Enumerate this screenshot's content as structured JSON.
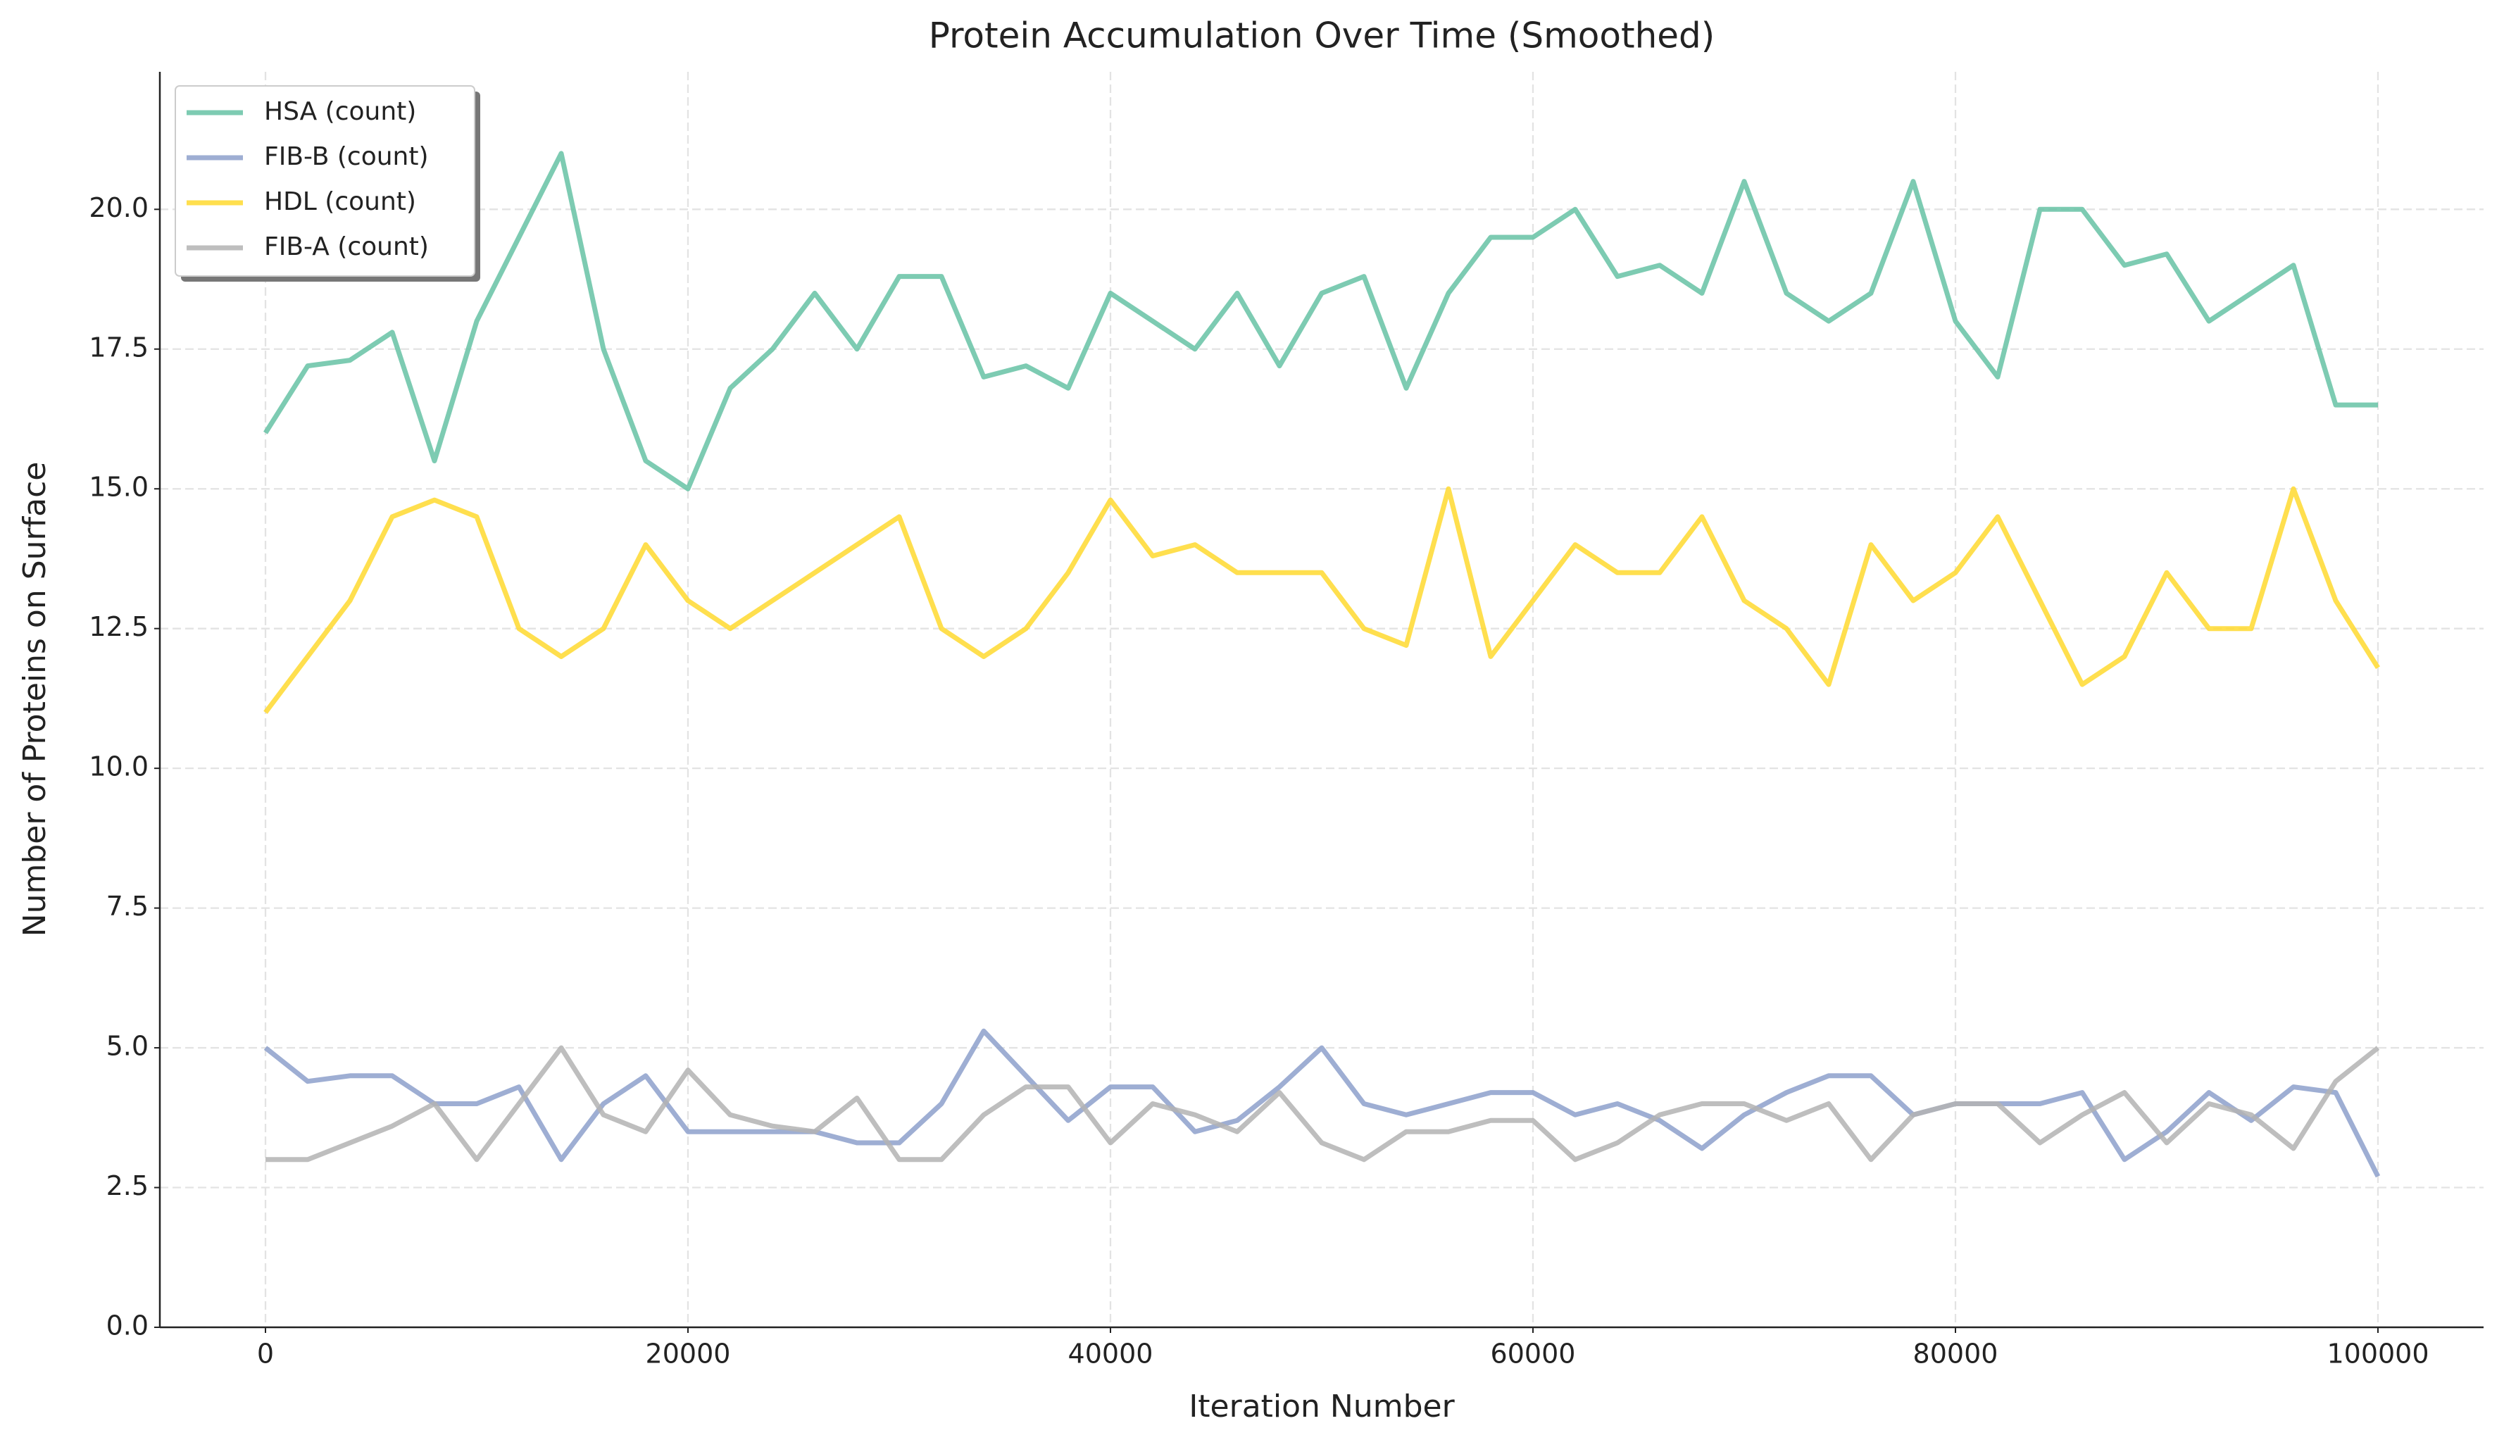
{
  "chart_data": {
    "type": "line",
    "title": "Protein Accumulation Over Time (Smoothed)",
    "x_label": "Iteration Number",
    "y_label": "Number of Proteins on Surface",
    "x": [
      0,
      2000,
      4000,
      6000,
      8000,
      10000,
      12000,
      14000,
      16000,
      18000,
      20000,
      22000,
      24000,
      26000,
      28000,
      30000,
      32000,
      34000,
      36000,
      38000,
      40000,
      42000,
      44000,
      46000,
      48000,
      50000,
      52000,
      54000,
      56000,
      58000,
      60000,
      62000,
      64000,
      66000,
      68000,
      70000,
      72000,
      74000,
      76000,
      78000,
      80000,
      82000,
      84000,
      86000,
      88000,
      90000,
      92000,
      94000,
      96000,
      98000,
      100000
    ],
    "series": [
      {
        "name": "HSA (count)",
        "color": "#66c2a5",
        "values": [
          16,
          17.2,
          17.3,
          17.8,
          15.5,
          18,
          19.5,
          21,
          17.5,
          15.5,
          15,
          16.8,
          17.5,
          18.5,
          17.5,
          18.8,
          18.8,
          17,
          17.2,
          16.8,
          18.5,
          18,
          17.5,
          18.5,
          17.2,
          18.5,
          18.8,
          16.8,
          18.5,
          19.5,
          19.5,
          20,
          18.8,
          19,
          18.5,
          20.5,
          18.5,
          18,
          18.5,
          20.5,
          18,
          17,
          20,
          20,
          19,
          19.2,
          18,
          18.5,
          19,
          16.5,
          16.5
        ]
      },
      {
        "name": "FIB-B (count)",
        "color": "#8da0cb",
        "values": [
          5,
          4.4,
          4.5,
          4.5,
          4,
          4,
          4.3,
          3,
          4,
          4.5,
          3.5,
          3.5,
          3.5,
          3.5,
          3.3,
          3.3,
          4,
          5.3,
          4.5,
          3.7,
          4.3,
          4.3,
          3.5,
          3.7,
          4.3,
          5,
          4,
          3.8,
          4,
          4.2,
          4.2,
          3.8,
          4,
          3.7,
          3.2,
          3.8,
          4.2,
          4.5,
          4.5,
          3.8,
          4,
          4,
          4,
          4.2,
          3,
          3.5,
          4.2,
          3.7,
          4.3,
          4.2,
          2.7
        ]
      },
      {
        "name": "HDL (count)",
        "color": "#ffd92f",
        "values": [
          11,
          12,
          13,
          14.5,
          14.8,
          14.5,
          12.5,
          12,
          12.5,
          14,
          13,
          12.5,
          13,
          13.5,
          14,
          14.5,
          12.5,
          12,
          12.5,
          13.5,
          14.8,
          13.8,
          14,
          13.5,
          13.5,
          13.5,
          12.5,
          12.2,
          15,
          12,
          13,
          14,
          13.5,
          13.5,
          14.5,
          13,
          12.5,
          11.5,
          14,
          13,
          13.5,
          14.5,
          13,
          11.5,
          12,
          13.5,
          12.5,
          12.5,
          15,
          13,
          11.8
        ]
      },
      {
        "name": "FIB-A (count)",
        "color": "#b3b3b3",
        "values": [
          3,
          3,
          3.3,
          3.6,
          4,
          3,
          4,
          5,
          3.8,
          3.5,
          4.6,
          3.8,
          3.6,
          3.5,
          4.1,
          3,
          3,
          3.8,
          4.3,
          4.3,
          3.3,
          4,
          3.8,
          3.5,
          4.2,
          3.3,
          3,
          3.5,
          3.5,
          3.7,
          3.7,
          3,
          3.3,
          3.8,
          4,
          4,
          3.7,
          4,
          3,
          3.8,
          4,
          4,
          3.3,
          3.8,
          4.2,
          3.3,
          4,
          3.8,
          3.2,
          4.4,
          5
        ]
      }
    ],
    "xlim": [
      -5000,
      105000
    ],
    "ylim": [
      0,
      22.46
    ],
    "xticks": [
      0,
      20000,
      40000,
      60000,
      80000,
      100000
    ],
    "yticks": [
      {
        "value": 0,
        "label": "0.0"
      },
      {
        "value": 2.5,
        "label": "2.5"
      },
      {
        "value": 5,
        "label": "5.0"
      },
      {
        "value": 7.5,
        "label": "7.5"
      },
      {
        "value": 10,
        "label": "10.0"
      },
      {
        "value": 12.5,
        "label": "12.5"
      },
      {
        "value": 15,
        "label": "15.0"
      },
      {
        "value": 17.5,
        "label": "17.5"
      },
      {
        "value": 20,
        "label": "20.0"
      }
    ],
    "grid": true,
    "legend": "upper-left"
  }
}
